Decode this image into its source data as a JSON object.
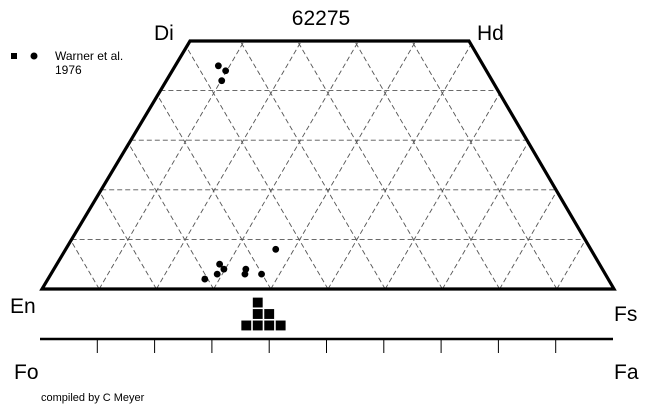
{
  "title": "62275",
  "vertices": {
    "top_left": "Di",
    "top_right": "Hd",
    "bottom_left": "En",
    "bottom_right": "Fs"
  },
  "olivine_axis": {
    "left": "Fo",
    "right": "Fa"
  },
  "legend": {
    "line1": "Warner et al.",
    "line2": "1976"
  },
  "credit": "compiled by C Meyer",
  "colors": {
    "ink": "#000000",
    "grid": "#555555",
    "background": "#ffffff"
  },
  "chart_data": {
    "type": "scatter",
    "diagram": "pyroxene quadrilateral (En-Fs-Di-Hd) with olivine Fo-Fa bar",
    "pyroxene_points": [
      {
        "wo": 45,
        "fs_frac": 0.14
      },
      {
        "wo": 44,
        "fs_frac": 0.17
      },
      {
        "wo": 42,
        "fs_frac": 0.17
      },
      {
        "wo": 8,
        "fs_frac": 0.4
      },
      {
        "wo": 5,
        "fs_frac": 0.3
      },
      {
        "wo": 4,
        "fs_frac": 0.35
      },
      {
        "wo": 3,
        "fs_frac": 0.35
      },
      {
        "wo": 4,
        "fs_frac": 0.31
      },
      {
        "wo": 2,
        "fs_frac": 0.28
      },
      {
        "wo": 3,
        "fs_frac": 0.3
      },
      {
        "wo": 3,
        "fs_frac": 0.38
      }
    ],
    "olivine_histogram": {
      "bin_width_fa": 2,
      "bins": [
        {
          "fa": 36,
          "count": 1
        },
        {
          "fa": 38,
          "count": 3
        },
        {
          "fa": 40,
          "count": 2
        },
        {
          "fa": 42,
          "count": 1
        }
      ]
    },
    "olivine_ticks_fa": [
      10,
      20,
      30,
      40,
      50,
      60,
      70,
      80,
      90
    ]
  }
}
